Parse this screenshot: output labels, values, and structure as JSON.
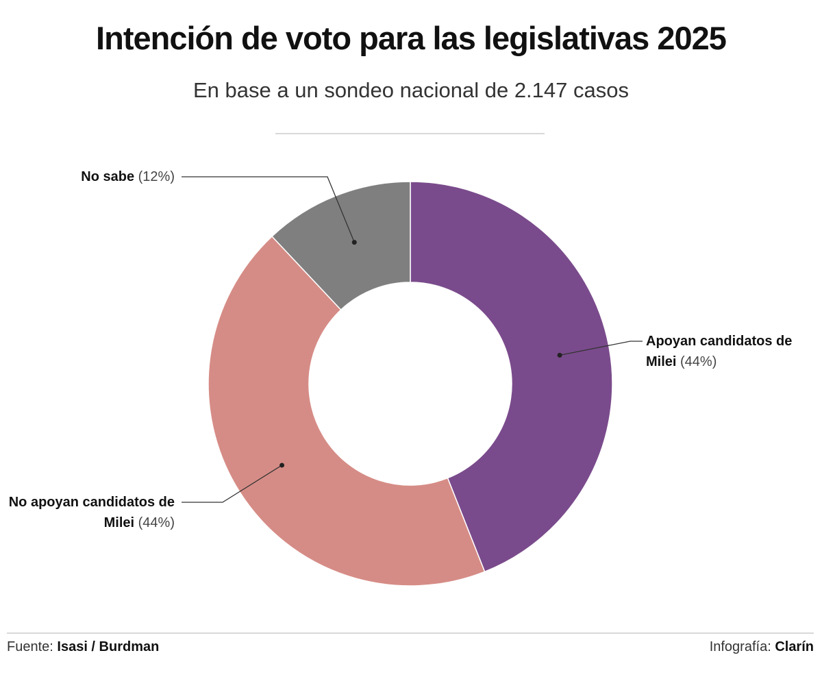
{
  "chart_data": {
    "type": "donut",
    "title": "Intención de voto para las legislativas 2025",
    "subtitle": "En base a un sondeo nacional de 2.147 casos",
    "categories": [
      "Apoyan candidatos de Milei",
      "No apoyan candidatos de Milei",
      "No sabe"
    ],
    "values": [
      44,
      44,
      12
    ],
    "value_labels": [
      "(44%)",
      "(44%)",
      "(12%)"
    ],
    "colors": [
      "#7a4b8c",
      "#d68c86",
      "#7f7f7f"
    ],
    "source_label": "Fuente:",
    "source": "Isasi / Burdman",
    "credit_label": "Infografía:",
    "credit": "Clarín"
  }
}
